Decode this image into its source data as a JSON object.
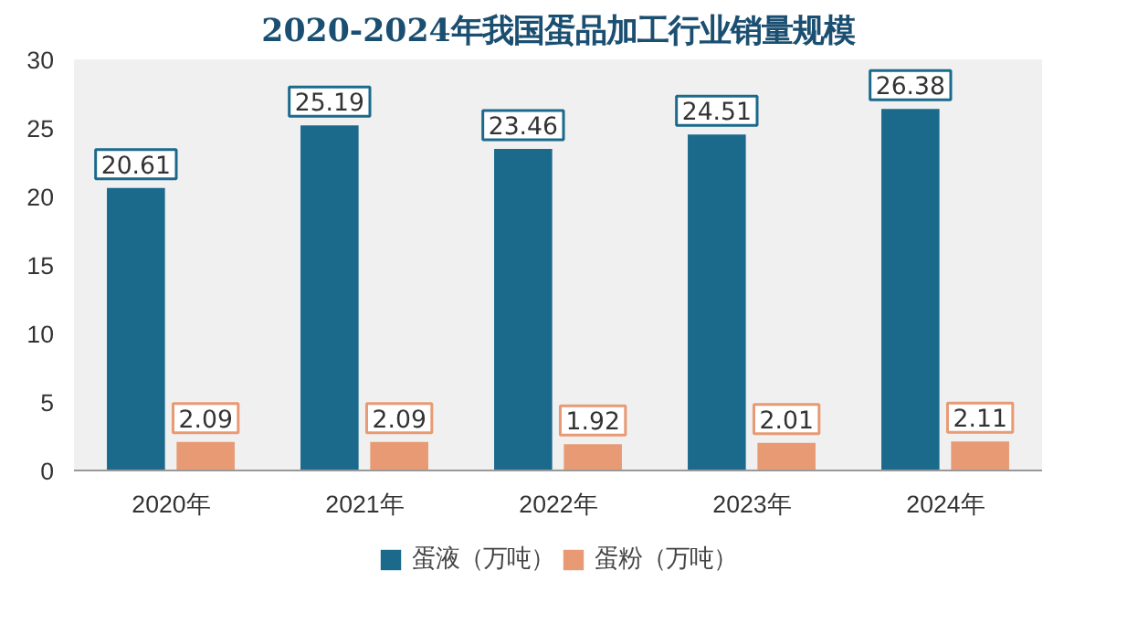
{
  "chart_data": {
    "type": "bar",
    "title": "2020-2024年我国蛋品加工行业销量规模",
    "categories": [
      "2020年",
      "2021年",
      "2022年",
      "2023年",
      "2024年"
    ],
    "series": [
      {
        "name": "蛋液（万吨）",
        "color": "#1b6a8c",
        "values": [
          20.61,
          25.19,
          23.46,
          24.51,
          26.38
        ]
      },
      {
        "name": "蛋粉（万吨）",
        "color": "#e89a74",
        "values": [
          2.09,
          2.09,
          1.92,
          2.01,
          2.11
        ]
      }
    ],
    "ylim": [
      0,
      30
    ],
    "yticks": [
      0,
      5,
      10,
      15,
      20,
      25,
      30
    ],
    "grid": false,
    "legend": "bottom",
    "data_labels": true
  }
}
